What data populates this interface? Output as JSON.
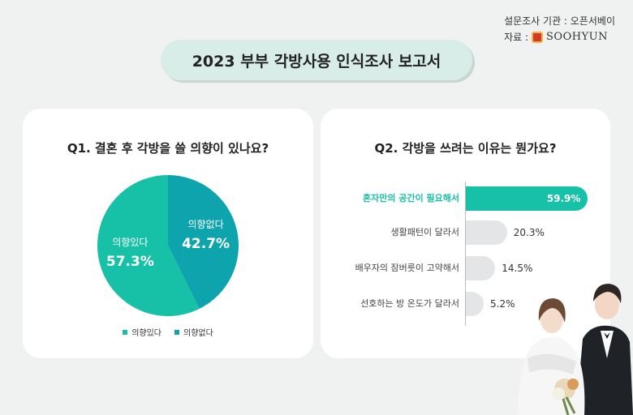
{
  "meta": {
    "survey": "설문조사 기관 : 오픈서베이",
    "source_label": "자료 :",
    "brand": "SOOHYUN"
  },
  "title": "2023 부부 각방사용 인식조사 보고서",
  "q1": {
    "question": "Q1. 결혼 후 각방을 쓸 의향이 있나요?"
  },
  "q2": {
    "question": "Q2. 각방을 쓰려는 이유는 뭔가요?"
  },
  "colors": {
    "accent": "#17c1a8",
    "secondary": "#0ea4ae",
    "bar_other": "#e3e5e6",
    "title_bg": "#d8ede8"
  },
  "chart_data": [
    {
      "type": "pie",
      "title": "Q1. 결혼 후 각방을 쓸 의향이 있나요?",
      "slices": [
        {
          "name": "의향있다",
          "value": 57.3,
          "label": "57.3%",
          "color": "#17c1a8"
        },
        {
          "name": "의향없다",
          "value": 42.7,
          "label": "42.7%",
          "color": "#0ea4ae"
        }
      ],
      "legend": [
        "의향있다",
        "의향없다"
      ],
      "legend_position": "bottom"
    },
    {
      "type": "bar",
      "orientation": "horizontal",
      "title": "Q2. 각방을 쓰려는 이유는 뭔가요?",
      "categories": [
        "혼자만의 공간이 필요해서",
        "생활패턴이 달라서",
        "배우자의 잠버릇이 고약해서",
        "선호하는 방 온도가 달라서"
      ],
      "values": [
        59.9,
        20.3,
        14.5,
        5.2
      ],
      "labels": [
        "59.9%",
        "20.3%",
        "14.5%",
        "5.2%"
      ],
      "highlight_index": 0,
      "xlim": [
        0,
        60
      ]
    }
  ]
}
